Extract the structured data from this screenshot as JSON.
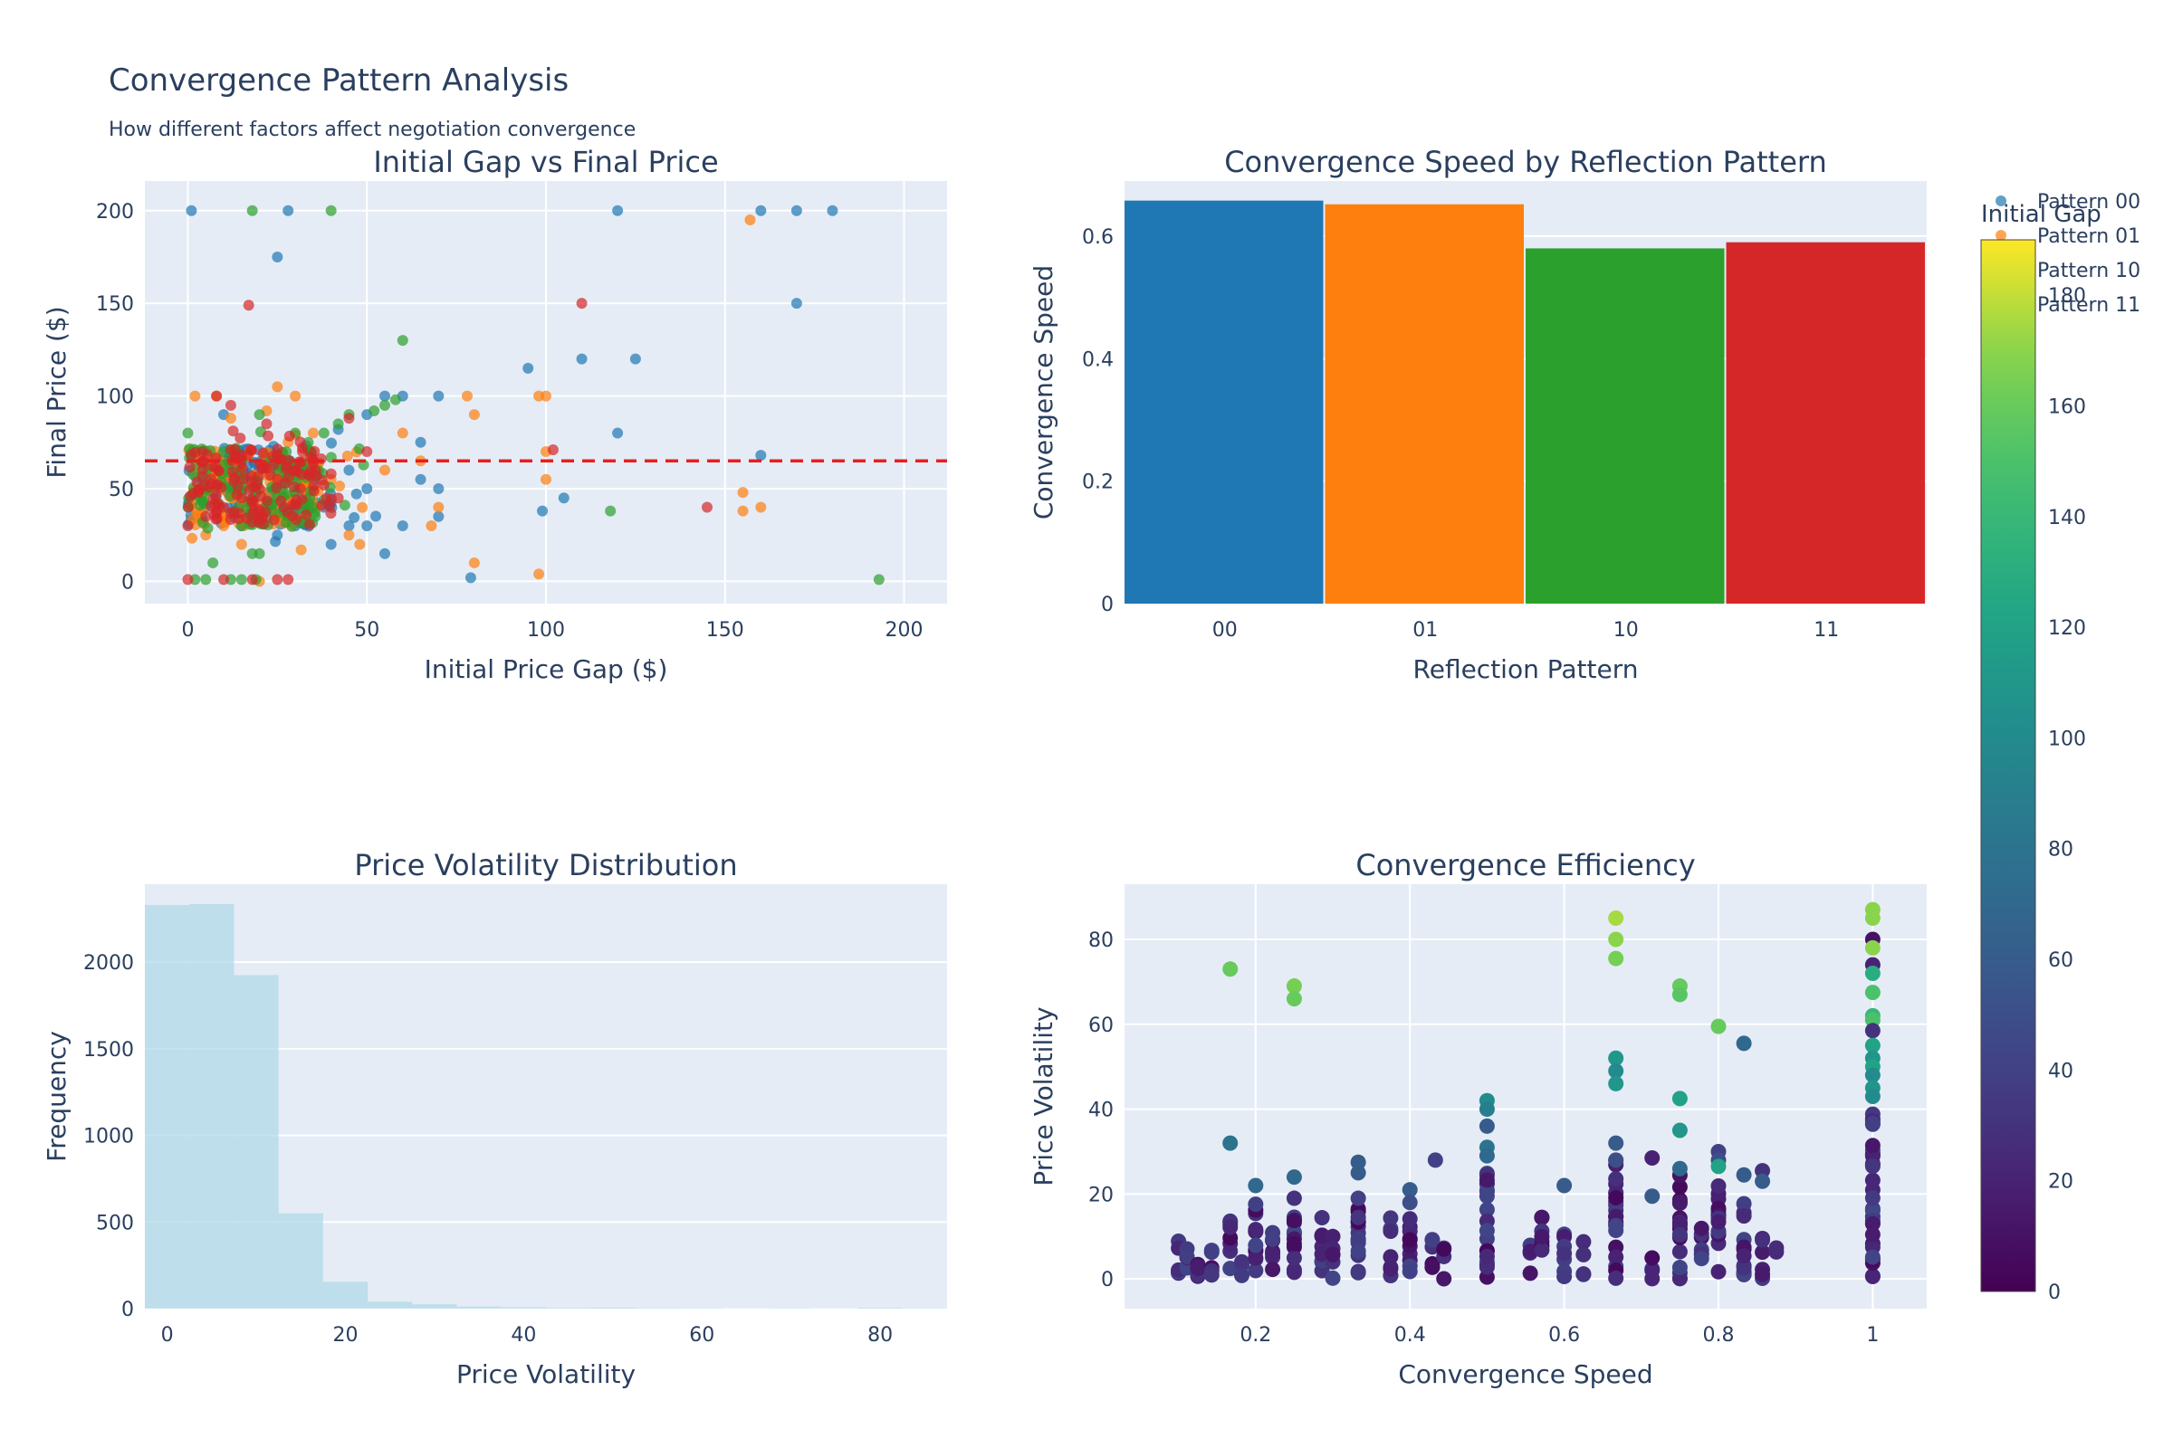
{
  "figure": {
    "title": "Convergence Pattern Analysis",
    "subtitle": "How different factors affect negotiation convergence"
  },
  "chart_data": [
    {
      "type": "scatter",
      "title": "Initial Gap vs Final Price",
      "xlabel": "Initial Price Gap ($)",
      "ylabel": "Final Price ($)",
      "xlim": [
        -12,
        212
      ],
      "ylim": [
        -12,
        216
      ],
      "xticks": [
        0,
        50,
        100,
        150,
        200
      ],
      "yticks": [
        0,
        50,
        100,
        150,
        200
      ],
      "reference_line": {
        "y": 65,
        "color": "#e5201e",
        "style": "dashed"
      },
      "series": [
        {
          "name": "Pattern 00",
          "color": "#1f77b4",
          "points": [
            [
              1,
              200
            ],
            [
              28,
              200
            ],
            [
              25,
              175
            ],
            [
              120,
              200
            ],
            [
              160,
              200
            ],
            [
              170,
              200
            ],
            [
              180,
              200
            ],
            [
              170,
              150
            ],
            [
              95,
              115
            ],
            [
              110,
              120
            ],
            [
              125,
              120
            ],
            [
              160,
              68
            ],
            [
              120,
              80
            ],
            [
              105,
              45
            ],
            [
              99,
              38
            ],
            [
              79,
              2
            ],
            [
              70,
              100
            ],
            [
              60,
              100
            ],
            [
              55,
              100
            ],
            [
              65,
              75
            ],
            [
              55,
              15
            ],
            [
              70,
              35
            ],
            [
              70,
              50
            ],
            [
              65,
              55
            ],
            [
              60,
              30
            ],
            [
              50,
              30
            ],
            [
              45,
              30
            ],
            [
              40,
              20
            ],
            [
              42,
              82
            ],
            [
              50,
              90
            ],
            [
              30,
              30
            ],
            [
              35,
              50
            ],
            [
              20,
              60
            ],
            [
              10,
              90
            ],
            [
              5,
              40
            ],
            [
              15,
              30
            ],
            [
              25,
              25
            ],
            [
              45,
              60
            ],
            [
              50,
              50
            ],
            [
              38,
              40
            ]
          ]
        },
        {
          "name": "Pattern 01",
          "color": "#ff7f0e",
          "points": [
            [
              157,
              195
            ],
            [
              100,
              100
            ],
            [
              98,
              100
            ],
            [
              78,
              100
            ],
            [
              80,
              90
            ],
            [
              80,
              10
            ],
            [
              98,
              4
            ],
            [
              100,
              55
            ],
            [
              100,
              70
            ],
            [
              155,
              48
            ],
            [
              155,
              38
            ],
            [
              160,
              40
            ],
            [
              70,
              40
            ],
            [
              68,
              30
            ],
            [
              65,
              65
            ],
            [
              60,
              80
            ],
            [
              55,
              60
            ],
            [
              48,
              20
            ],
            [
              45,
              25
            ],
            [
              35,
              80
            ],
            [
              40,
              55
            ],
            [
              25,
              105
            ],
            [
              30,
              100
            ],
            [
              28,
              75
            ],
            [
              15,
              20
            ],
            [
              10,
              30
            ],
            [
              5,
              25
            ],
            [
              20,
              0
            ],
            [
              8,
              100
            ],
            [
              2,
              100
            ],
            [
              12,
              88
            ],
            [
              22,
              92
            ],
            [
              18,
              45
            ]
          ]
        },
        {
          "name": "Pattern 10",
          "color": "#2ca02c",
          "points": [
            [
              18,
              200
            ],
            [
              40,
              200
            ],
            [
              60,
              130
            ],
            [
              118,
              38
            ],
            [
              193,
              1
            ],
            [
              55,
              95
            ],
            [
              58,
              98
            ],
            [
              52,
              92
            ],
            [
              45,
              90
            ],
            [
              42,
              85
            ],
            [
              38,
              80
            ],
            [
              30,
              80
            ],
            [
              20,
              90
            ],
            [
              18,
              15
            ],
            [
              20,
              15
            ],
            [
              5,
              1
            ],
            [
              2,
              1
            ],
            [
              7,
              10
            ],
            [
              12,
              1
            ],
            [
              15,
              1
            ],
            [
              19,
              1
            ],
            [
              0,
              80
            ],
            [
              10,
              70
            ],
            [
              25,
              60
            ],
            [
              35,
              40
            ],
            [
              28,
              35
            ],
            [
              15,
              30
            ],
            [
              5,
              55
            ]
          ]
        },
        {
          "name": "Pattern 11",
          "color": "#d62728",
          "points": [
            [
              17,
              149
            ],
            [
              110,
              150
            ],
            [
              145,
              40
            ],
            [
              102,
              71
            ],
            [
              45,
              88
            ],
            [
              50,
              70
            ],
            [
              35,
              65
            ],
            [
              30,
              60
            ],
            [
              25,
              55
            ],
            [
              20,
              50
            ],
            [
              15,
              45
            ],
            [
              10,
              40
            ],
            [
              5,
              35
            ],
            [
              0,
              30
            ],
            [
              0,
              1
            ],
            [
              10,
              1
            ],
            [
              18,
              1
            ],
            [
              25,
              1
            ],
            [
              28,
              1
            ],
            [
              40,
              58
            ],
            [
              42,
              45
            ],
            [
              32,
              72
            ],
            [
              22,
              85
            ],
            [
              12,
              95
            ],
            [
              8,
              100
            ],
            [
              15,
              68
            ],
            [
              20,
              38
            ],
            [
              30,
              42
            ],
            [
              38,
              52
            ],
            [
              3,
              48
            ],
            [
              7,
              62
            ],
            [
              13,
              56
            ],
            [
              18,
              32
            ],
            [
              26,
              66
            ],
            [
              33,
              36
            ]
          ]
        }
      ]
    },
    {
      "type": "bar",
      "title": "Convergence Speed by Reflection Pattern",
      "xlabel": "Reflection Pattern",
      "ylabel": "Convergence Speed",
      "categories": [
        "00",
        "01",
        "10",
        "11"
      ],
      "values": [
        0.658,
        0.652,
        0.58,
        0.59
      ],
      "colors": [
        "#1f77b4",
        "#ff7f0e",
        "#2ca02c",
        "#d62728"
      ],
      "ylim": [
        0,
        0.69
      ],
      "yticks": [
        0,
        0.2,
        0.4,
        0.6
      ],
      "yticklabels": [
        "0",
        "0.2",
        "0.4",
        "0.6"
      ]
    },
    {
      "type": "bar",
      "title": "Price Volatility Distribution",
      "xlabel": "Price Volatility",
      "ylabel": "Frequency",
      "bins": [
        [
          -2.5,
          2.5,
          2330
        ],
        [
          2.5,
          7.5,
          2335
        ],
        [
          7.5,
          12.5,
          1925
        ],
        [
          12.5,
          17.5,
          550
        ],
        [
          17.5,
          22.5,
          155
        ],
        [
          22.5,
          27.5,
          40
        ],
        [
          27.5,
          32.5,
          25
        ],
        [
          32.5,
          37.5,
          12
        ],
        [
          37.5,
          42.5,
          8
        ],
        [
          42.5,
          47.5,
          5
        ],
        [
          47.5,
          52.5,
          6
        ],
        [
          52.5,
          57.5,
          4
        ],
        [
          57.5,
          62.5,
          3
        ],
        [
          62.5,
          67.5,
          2
        ],
        [
          67.5,
          72.5,
          3
        ],
        [
          72.5,
          77.5,
          2
        ],
        [
          77.5,
          82.5,
          5
        ],
        [
          82.5,
          87.5,
          3
        ]
      ],
      "color": "#add8e6",
      "xlim": [
        -2.5,
        87.5
      ],
      "ylim": [
        0,
        2450
      ],
      "xticks": [
        0,
        20,
        40,
        60,
        80
      ],
      "yticks": [
        0,
        500,
        1000,
        1500,
        2000
      ]
    },
    {
      "type": "scatter",
      "title": "Convergence Efficiency",
      "xlabel": "Convergence Speed",
      "ylabel": "Price Volatility",
      "xlim": [
        0.03,
        1.07
      ],
      "ylim": [
        -7,
        93
      ],
      "xticks": [
        0.2,
        0.4,
        0.6,
        0.8,
        1
      ],
      "xticklabels": [
        "0.2",
        "0.4",
        "0.6",
        "0.8",
        "1"
      ],
      "yticks": [
        0,
        20,
        40,
        60,
        80
      ],
      "colorscale": "Viridis",
      "color_value": "Initial Gap",
      "points": [
        [
          0.167,
          73,
          160
        ],
        [
          0.25,
          69,
          165
        ],
        [
          0.25,
          66,
          160
        ],
        [
          0.667,
          85,
          175
        ],
        [
          0.667,
          80,
          170
        ],
        [
          0.667,
          75.5,
          165
        ],
        [
          0.75,
          69,
          160
        ],
        [
          0.75,
          67,
          155
        ],
        [
          0.8,
          59.5,
          160
        ],
        [
          1,
          87,
          170
        ],
        [
          1,
          85,
          170
        ],
        [
          1,
          80,
          10
        ],
        [
          1,
          78,
          170
        ],
        [
          1,
          74,
          20
        ],
        [
          1,
          72,
          130
        ],
        [
          1,
          67.5,
          150
        ],
        [
          1,
          62,
          140
        ],
        [
          1,
          61,
          150
        ],
        [
          1,
          58.5,
          30
        ],
        [
          1,
          55,
          120
        ],
        [
          1,
          52,
          110
        ],
        [
          1,
          50,
          120
        ],
        [
          1,
          48,
          100
        ],
        [
          1,
          45,
          110
        ],
        [
          1,
          43,
          100
        ],
        [
          0.833,
          55.5,
          70
        ],
        [
          0.5,
          42,
          100
        ],
        [
          0.5,
          40,
          90
        ],
        [
          0.5,
          36,
          60
        ],
        [
          0.5,
          31,
          80
        ],
        [
          0.5,
          29,
          70
        ],
        [
          0.667,
          52,
          110
        ],
        [
          0.667,
          49,
          100
        ],
        [
          0.667,
          46,
          110
        ],
        [
          0.75,
          42.5,
          120
        ],
        [
          0.75,
          35,
          110
        ],
        [
          0.8,
          30,
          40
        ],
        [
          0.8,
          28,
          50
        ],
        [
          0.8,
          26.5,
          120
        ],
        [
          0.167,
          32,
          80
        ],
        [
          0.2,
          22,
          70
        ],
        [
          0.25,
          24,
          70
        ],
        [
          0.25,
          19,
          30
        ],
        [
          0.333,
          27.5,
          60
        ],
        [
          0.333,
          25,
          60
        ],
        [
          0.333,
          19,
          40
        ],
        [
          0.4,
          21,
          60
        ],
        [
          0.4,
          18,
          50
        ],
        [
          0.433,
          28,
          40
        ],
        [
          0.6,
          22,
          60
        ],
        [
          0.714,
          28.5,
          20
        ],
        [
          0.714,
          19.5,
          60
        ],
        [
          0.857,
          25.5,
          30
        ],
        [
          0.857,
          23,
          60
        ],
        [
          0.833,
          24.5,
          60
        ],
        [
          0.667,
          32,
          60
        ],
        [
          0.667,
          28,
          50
        ],
        [
          0.75,
          26,
          70
        ]
      ],
      "clusters": [
        {
          "x": 0.1,
          "top": 12,
          "n": 6
        },
        {
          "x": 0.111,
          "top": 9,
          "n": 4
        },
        {
          "x": 0.125,
          "top": 11,
          "n": 5
        },
        {
          "x": 0.143,
          "top": 10,
          "n": 5
        },
        {
          "x": 0.167,
          "top": 15,
          "n": 8
        },
        {
          "x": 0.182,
          "top": 9,
          "n": 4
        },
        {
          "x": 0.2,
          "top": 18,
          "n": 12
        },
        {
          "x": 0.222,
          "top": 12,
          "n": 8
        },
        {
          "x": 0.25,
          "top": 15,
          "n": 12
        },
        {
          "x": 0.286,
          "top": 15,
          "n": 8
        },
        {
          "x": 0.3,
          "top": 11,
          "n": 6
        },
        {
          "x": 0.333,
          "top": 19,
          "n": 14
        },
        {
          "x": 0.375,
          "top": 15,
          "n": 8
        },
        {
          "x": 0.4,
          "top": 16,
          "n": 10
        },
        {
          "x": 0.429,
          "top": 10,
          "n": 6
        },
        {
          "x": 0.444,
          "top": 8,
          "n": 4
        },
        {
          "x": 0.5,
          "top": 26,
          "n": 20
        },
        {
          "x": 0.556,
          "top": 8,
          "n": 4
        },
        {
          "x": 0.571,
          "top": 15,
          "n": 8
        },
        {
          "x": 0.6,
          "top": 12,
          "n": 7
        },
        {
          "x": 0.625,
          "top": 9,
          "n": 5
        },
        {
          "x": 0.667,
          "top": 30,
          "n": 22
        },
        {
          "x": 0.714,
          "top": 8,
          "n": 4
        },
        {
          "x": 0.75,
          "top": 25,
          "n": 18
        },
        {
          "x": 0.778,
          "top": 12,
          "n": 6
        },
        {
          "x": 0.8,
          "top": 22,
          "n": 14
        },
        {
          "x": 0.833,
          "top": 20,
          "n": 12
        },
        {
          "x": 0.857,
          "top": 12,
          "n": 6
        },
        {
          "x": 0.875,
          "top": 8,
          "n": 2
        },
        {
          "x": 1.0,
          "top": 40,
          "n": 30
        }
      ]
    }
  ],
  "legend": {
    "items": [
      {
        "label": "Pattern 00",
        "color": "#1f77b4"
      },
      {
        "label": "Pattern 01",
        "color": "#ff7f0e"
      },
      {
        "label": "Pattern 10",
        "color": "#2ca02c"
      },
      {
        "label": "Pattern 11",
        "color": "#d62728"
      }
    ]
  },
  "colorbar": {
    "title": "Initial Gap",
    "min": 0,
    "max": 190,
    "ticks": [
      0,
      20,
      40,
      60,
      80,
      100,
      120,
      140,
      160,
      180
    ]
  }
}
